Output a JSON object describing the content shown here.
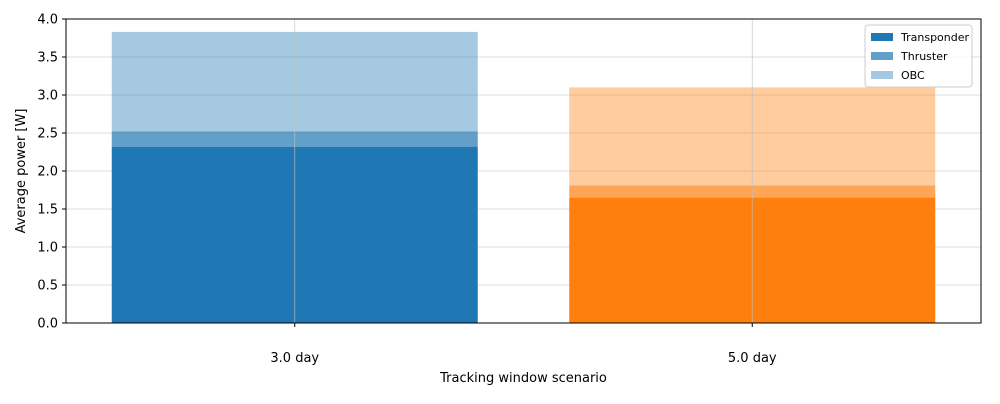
{
  "chart_data": {
    "type": "bar",
    "stacked": true,
    "title": "",
    "xlabel": "Tracking window scenario",
    "ylabel": "Average power [W]",
    "categories": [
      "3.0 day",
      "5.0 day"
    ],
    "ylim": [
      0,
      4.0
    ],
    "yticks": [
      "0.0",
      "0.5",
      "1.0",
      "1.5",
      "2.0",
      "2.5",
      "3.0",
      "3.5",
      "4.0"
    ],
    "grid": true,
    "legend_position": "top-right",
    "series": [
      {
        "name": "Transponder",
        "values": [
          2.32,
          1.65
        ],
        "opacity": 1.0,
        "legend_color": "#1f77b4"
      },
      {
        "name": "Thruster",
        "values": [
          0.2,
          0.16
        ],
        "opacity": 0.7,
        "legend_color": "#1f77b4"
      },
      {
        "name": "OBC",
        "values": [
          1.31,
          1.29
        ],
        "opacity": 0.4,
        "legend_color": "#1f77b4"
      }
    ],
    "category_colors": [
      "#1f77b4",
      "#ff7f0e"
    ]
  }
}
